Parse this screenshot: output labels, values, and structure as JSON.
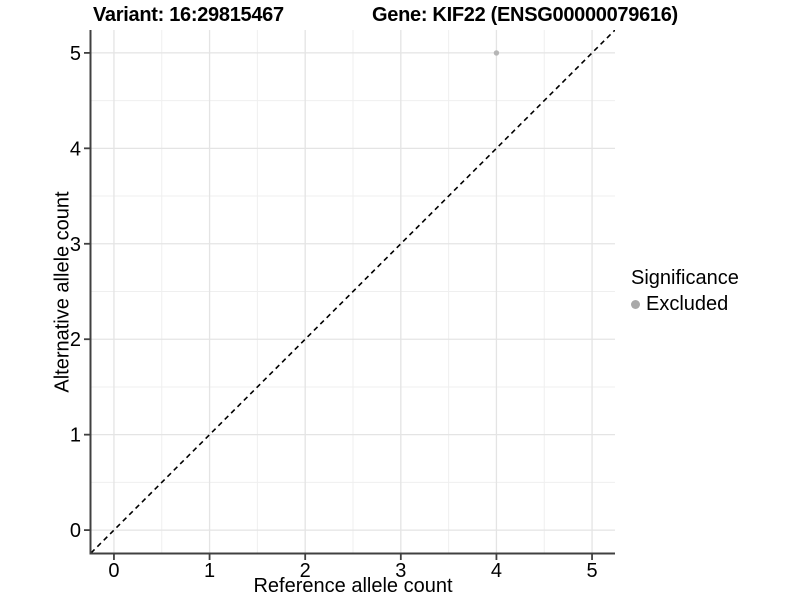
{
  "chart_data": {
    "type": "scatter",
    "title_left": "Variant: 16:29815467",
    "title_right": "Gene: KIF22 (ENSG00000079616)",
    "xlabel": "Reference allele count",
    "ylabel": "Alternative allele count",
    "x_ticks": [
      0,
      1,
      2,
      3,
      4,
      5
    ],
    "y_ticks": [
      0,
      1,
      2,
      3,
      4,
      5
    ],
    "x_minor": [
      0.5,
      1.5,
      2.5,
      3.5,
      4.5
    ],
    "y_minor": [
      0.5,
      1.5,
      2.5,
      3.5,
      4.5
    ],
    "xlim": [
      -0.24,
      5.24
    ],
    "ylim": [
      -0.24,
      5.24
    ],
    "grid": "major and minor gridlines, light grey on white",
    "identity_line": {
      "slope": 1,
      "intercept": 0,
      "style": "dashed",
      "color": "#000000"
    },
    "series": [
      {
        "name": "Excluded",
        "color": "#b6b6b6",
        "points": [
          {
            "x": 4,
            "y": 5
          }
        ]
      }
    ],
    "legend": {
      "title": "Significance",
      "position": "right",
      "items": [
        {
          "label": "Excluded",
          "color": "#a9a9a9"
        }
      ]
    },
    "colors": {
      "background": "#ffffff",
      "grid_major": "#e4e4e4",
      "grid_minor": "#efefef",
      "axis": "#404040",
      "text": "#000000"
    }
  }
}
